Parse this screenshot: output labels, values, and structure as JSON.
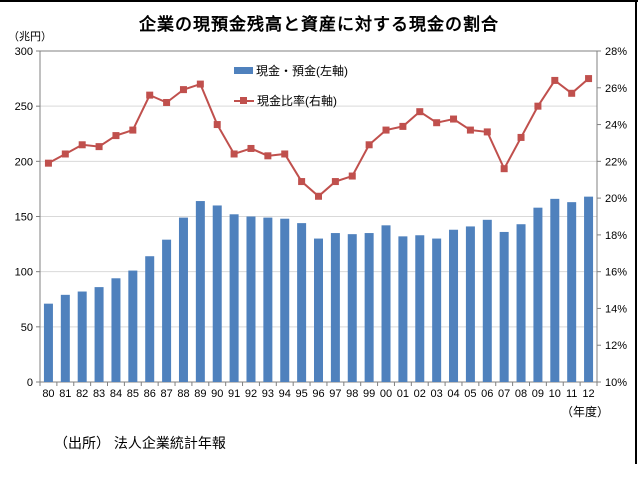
{
  "title": "企業の現預金残高と資産に対する現金の割合",
  "source": "（出所） 法人企業統計年報",
  "axes": {
    "left_unit": "（兆円）",
    "x_unit": "（年度）"
  },
  "legend": {
    "items": [
      {
        "label": "現金・預金(左軸)",
        "marker": "bar-swatch",
        "color": "#4f81bd"
      },
      {
        "label": "現金比率(右軸)",
        "marker": "line-square-swatch",
        "color": "#c0504d"
      }
    ]
  },
  "colors": {
    "bar": "#4f81bd",
    "line": "#c0504d",
    "gridline": "#d9d9d9",
    "axis": "#808080",
    "text": "#000000",
    "frame": "#000000"
  },
  "chart_data": {
    "type": "bar",
    "subtype": "bar-and-line-dual-axis",
    "title": "企業の現預金残高と資産に対する現金の割合",
    "categories": [
      "80",
      "81",
      "82",
      "83",
      "84",
      "85",
      "86",
      "87",
      "88",
      "89",
      "90",
      "91",
      "92",
      "93",
      "94",
      "95",
      "96",
      "97",
      "98",
      "99",
      "00",
      "01",
      "02",
      "03",
      "04",
      "05",
      "06",
      "07",
      "08",
      "09",
      "10",
      "11",
      "12"
    ],
    "series": [
      {
        "name": "現金・預金(左軸)",
        "type": "bar",
        "axis": "left",
        "color": "#4f81bd",
        "values": [
          71,
          79,
          82,
          86,
          94,
          101,
          114,
          129,
          149,
          164,
          160,
          152,
          150,
          149,
          148,
          144,
          130,
          135,
          134,
          135,
          142,
          132,
          133,
          130,
          138,
          141,
          147,
          136,
          143,
          158,
          166,
          163,
          168
        ]
      },
      {
        "name": "現金比率(右軸)",
        "type": "line",
        "axis": "right",
        "color": "#c0504d",
        "values": [
          21.9,
          22.4,
          22.9,
          22.8,
          23.4,
          23.7,
          25.6,
          25.2,
          25.9,
          26.2,
          24.0,
          22.4,
          22.7,
          22.3,
          22.4,
          20.9,
          20.1,
          20.9,
          21.2,
          22.9,
          23.7,
          23.9,
          24.7,
          24.1,
          24.3,
          23.7,
          23.6,
          21.6,
          23.3,
          25.0,
          26.4,
          25.7,
          26.5
        ]
      }
    ],
    "left_axis": {
      "unit": "（兆円）",
      "min": 0,
      "max": 300,
      "step": 50
    },
    "right_axis": {
      "min": 10,
      "max": 28,
      "step": 2,
      "suffix": "%"
    },
    "x_label": "（年度）",
    "grid": true,
    "legend_position": "top-center-inside"
  }
}
